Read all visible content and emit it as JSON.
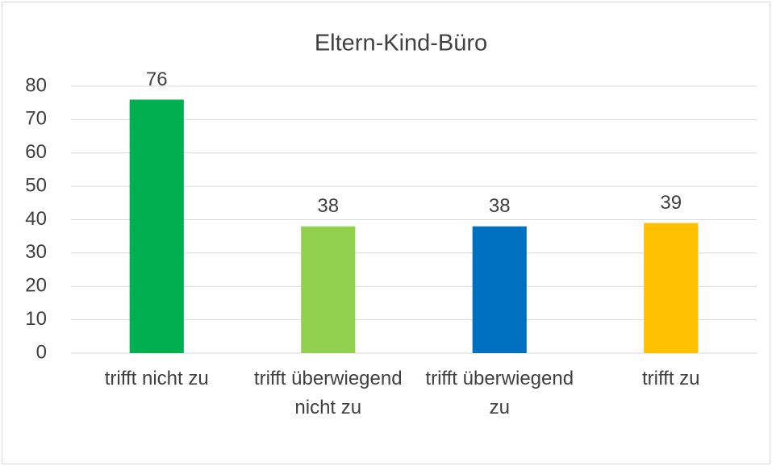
{
  "chart_data": {
    "type": "bar",
    "title": "Eltern-Kind-Büro",
    "categories": [
      "trifft nicht zu",
      "trifft überwiegend nicht zu",
      "trifft überwiegend zu",
      "trifft zu"
    ],
    "values": [
      76,
      38,
      38,
      39
    ],
    "colors": [
      "#00b050",
      "#92d050",
      "#0070c0",
      "#ffc000"
    ],
    "ylim": [
      0,
      80
    ],
    "yticks": [
      0,
      10,
      20,
      30,
      40,
      50,
      60,
      70,
      80
    ],
    "grid": true
  }
}
